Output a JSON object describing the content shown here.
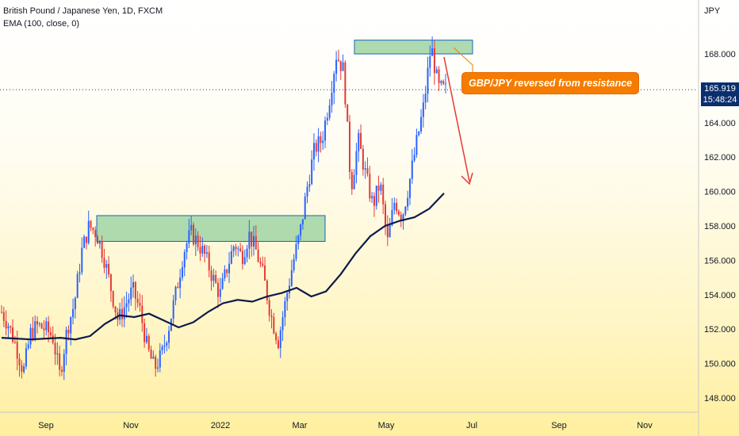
{
  "header": {
    "symbol_line": "British Pound / Japanese Yen, 1D, FXCM",
    "indicator_line": "EMA (100, close, 0)",
    "currency": "JPY"
  },
  "annotation": {
    "text": "GBP/JPY reversed from resistance"
  },
  "last_price": {
    "value": "165.919",
    "countdown": "15:48:24"
  },
  "colors": {
    "up": "#2962ff",
    "down": "#e53935",
    "ema": "#0d1b4a",
    "zone_fill": "#a5d6a7",
    "zone_stroke": "#1565c0",
    "arrow": "#e53935",
    "annotation": "#f57c00"
  },
  "chart_data": {
    "type": "candlestick",
    "y_ticks": [
      "148.000",
      "150.000",
      "152.000",
      "154.000",
      "156.000",
      "158.000",
      "160.000",
      "162.000",
      "164.000",
      "168.000"
    ],
    "ylim": [
      147.2,
      170.2
    ],
    "x_ticks": [
      "Sep",
      "Nov",
      "2022",
      "Mar",
      "May",
      "Jul",
      "Sep",
      "Nov"
    ],
    "grid": false,
    "resistance_zones": [
      {
        "from_month": "Oct",
        "to_month": "Mar",
        "low": 157.1,
        "high": 158.6
      },
      {
        "from_month": "Apr",
        "to_month": "Jun",
        "low": 168.0,
        "high": 168.8
      }
    ],
    "ema_period": 100,
    "ema_values": [
      151.5,
      151.45,
      151.4,
      151.45,
      151.5,
      151.4,
      151.6,
      152.3,
      152.8,
      152.7,
      152.9,
      152.5,
      152.1,
      152.4,
      153.0,
      153.5,
      153.7,
      153.6,
      153.9,
      154.1,
      154.4,
      153.9,
      154.2,
      155.2,
      156.4,
      157.4,
      158.0,
      158.3,
      158.5,
      159.0,
      159.9
    ],
    "price_path": [
      153.0,
      152.2,
      151.0,
      149.5,
      151.8,
      152.2,
      152.0,
      151.6,
      149.3,
      152.0,
      153.5,
      156.5,
      158.0,
      157.6,
      156.3,
      154.4,
      152.5,
      153.4,
      154.3,
      153.1,
      150.9,
      149.7,
      150.5,
      152.2,
      154.2,
      156.5,
      157.6,
      157.0,
      156.2,
      155.0,
      154.0,
      155.6,
      157.0,
      156.2,
      157.5,
      156.5,
      155.0,
      152.8,
      151.3,
      153.6,
      155.8,
      157.6,
      160.3,
      162.5,
      163.0,
      165.3,
      168.0,
      167.0,
      160.2,
      163.0,
      161.0,
      159.2,
      160.5,
      157.0,
      159.5,
      158.5,
      160.5,
      162.8,
      165.0,
      168.5,
      166.0,
      165.9
    ]
  }
}
